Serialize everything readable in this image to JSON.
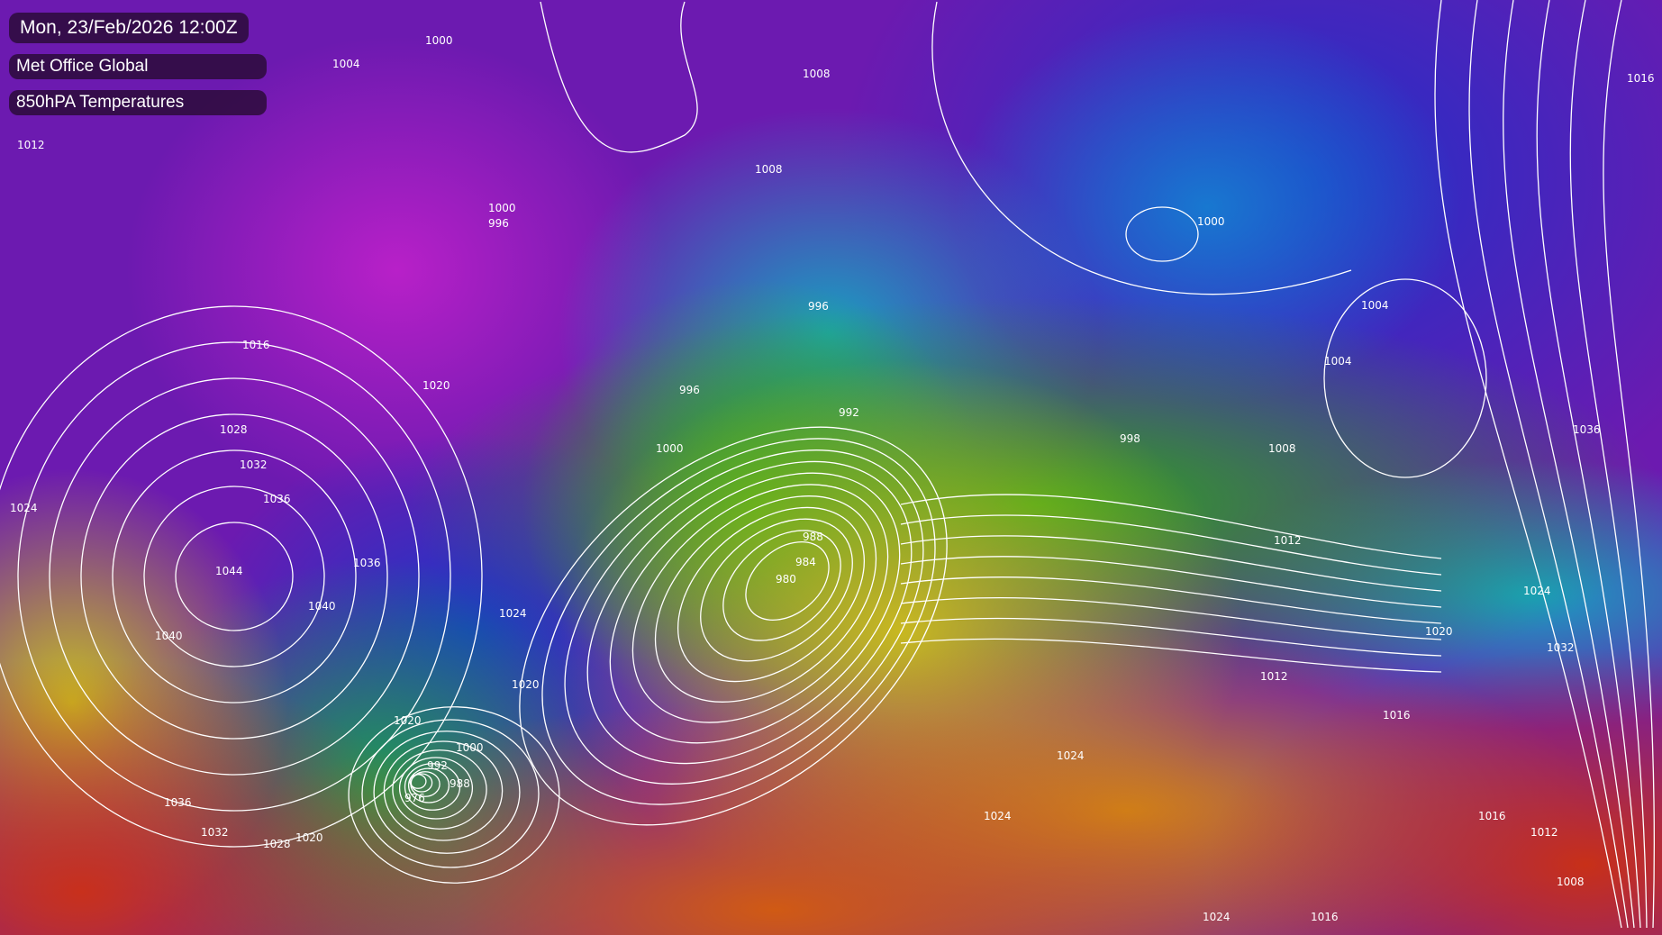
{
  "header": {
    "datetime": "Mon, 23/Feb/2026 12:00Z",
    "model": "Met Office Global",
    "parameter": "850hPA Temperatures"
  },
  "map": {
    "colors": {
      "cold": "#6c1ab0",
      "very_cold": "#b820c8",
      "cool": "#2030c8",
      "mild": "#18a0c0",
      "neutral": "#2aa818",
      "warm": "#c8b820",
      "hot": "#d05a14",
      "very_hot": "#c8301c",
      "isobar": "#ffffff"
    },
    "isobar_labels": [
      "1000",
      "1004",
      "1012",
      "1008",
      "1008",
      "1000",
      "996",
      "1000",
      "1004",
      "996",
      "992",
      "996",
      "1000",
      "988",
      "984",
      "980",
      "1036",
      "1032",
      "1024",
      "1044",
      "1040",
      "1036",
      "1040",
      "1020",
      "1024",
      "1000",
      "992",
      "988",
      "1028",
      "1032",
      "1020",
      "1036",
      "1024",
      "1024",
      "1012",
      "1016",
      "1016",
      "1012",
      "1008",
      "1024",
      "1016",
      "1020",
      "1024",
      "1032",
      "1036",
      "1016",
      "1004",
      "998",
      "1008",
      "1016",
      "1020",
      "1028",
      "1012",
      "1020",
      "976"
    ]
  }
}
